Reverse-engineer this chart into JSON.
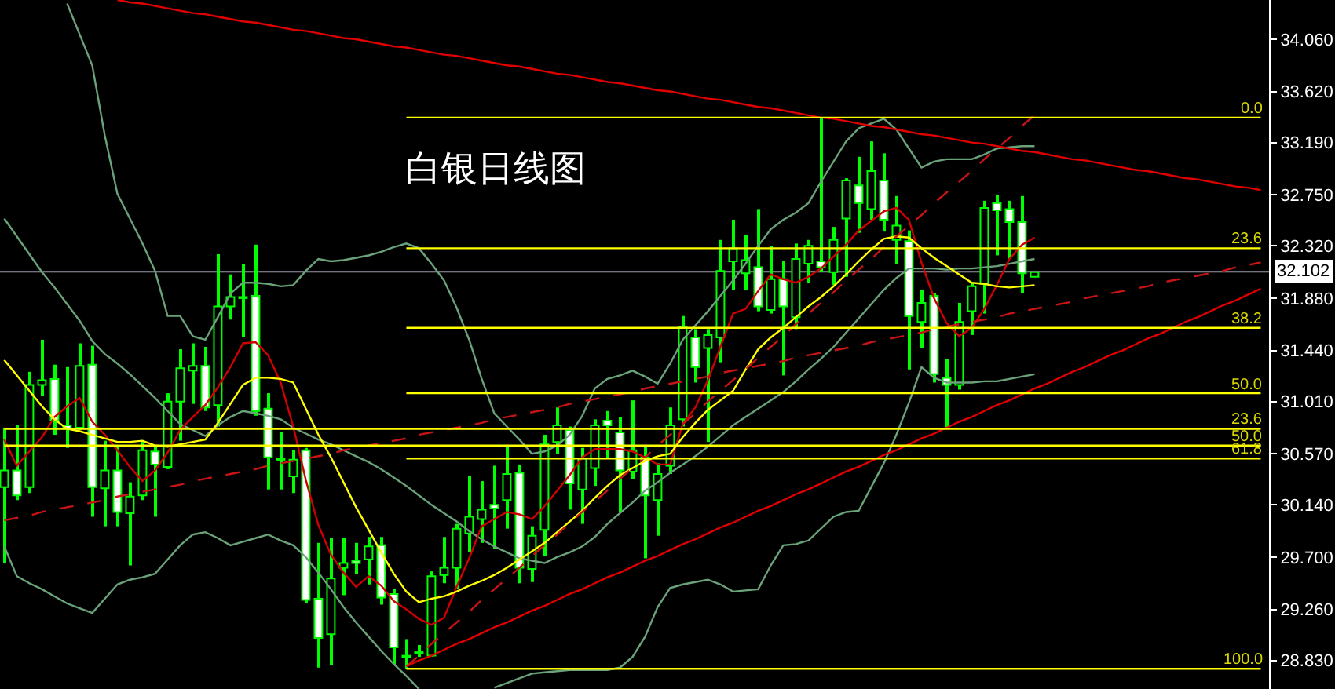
{
  "chart_data": {
    "type": "candlestick",
    "title": "白银日线图",
    "categories": [
      null,
      null,
      null,
      null,
      null,
      null,
      null,
      null,
      null,
      null,
      null,
      null,
      null,
      null,
      null,
      null,
      null,
      null,
      null,
      null,
      null,
      null,
      null,
      null,
      null,
      null,
      null,
      null,
      null,
      null,
      null,
      null,
      null,
      null,
      null,
      null,
      null,
      null,
      null,
      null,
      null,
      null,
      null,
      null,
      null,
      null,
      null,
      null,
      null,
      null,
      null,
      null,
      null,
      null,
      null,
      null,
      null,
      null,
      null,
      null,
      null,
      null,
      null,
      null,
      null,
      null,
      null,
      null,
      null,
      null,
      null,
      null,
      null,
      null,
      null,
      null,
      null,
      null,
      null,
      null,
      null,
      null,
      null,
      null,
      null,
      null,
      null,
      null,
      null,
      null,
      null,
      null,
      null,
      null,
      null,
      null,
      null,
      null,
      null,
      null,
      null
    ],
    "ohlc": [
      [
        30.29,
        30.79,
        29.65,
        30.43
      ],
      [
        30.43,
        30.81,
        30.18,
        30.22
      ],
      [
        30.29,
        31.26,
        30.24,
        31.15
      ],
      [
        31.15,
        31.53,
        31.06,
        31.19
      ],
      [
        31.2,
        31.32,
        30.73,
        30.85
      ],
      [
        30.81,
        31.3,
        30.62,
        30.78
      ],
      [
        30.79,
        31.5,
        30.77,
        31.31
      ],
      [
        31.32,
        31.48,
        30.04,
        30.29
      ],
      [
        30.28,
        30.68,
        29.96,
        30.43
      ],
      [
        30.43,
        30.64,
        29.96,
        30.08
      ],
      [
        30.07,
        30.33,
        29.63,
        30.21
      ],
      [
        30.22,
        30.68,
        30.18,
        30.6
      ],
      [
        30.59,
        30.64,
        30.04,
        30.48
      ],
      [
        30.46,
        31.08,
        30.44,
        31.01
      ],
      [
        31.01,
        31.45,
        30.68,
        31.29
      ],
      [
        31.27,
        31.5,
        30.99,
        31.31
      ],
      [
        31.31,
        31.47,
        30.93,
        30.96
      ],
      [
        30.98,
        32.25,
        30.8,
        31.81
      ],
      [
        31.81,
        32.08,
        31.7,
        31.89
      ],
      [
        31.89,
        32.17,
        31.55,
        31.88
      ],
      [
        31.9,
        32.33,
        30.89,
        30.93
      ],
      [
        30.95,
        31.08,
        30.27,
        30.54
      ],
      [
        30.53,
        30.75,
        30.27,
        30.52
      ],
      [
        30.38,
        30.6,
        30.24,
        30.52
      ],
      [
        30.6,
        30.62,
        29.31,
        29.34
      ],
      [
        29.35,
        29.82,
        28.77,
        29.02
      ],
      [
        29.05,
        29.86,
        28.79,
        29.52
      ],
      [
        29.61,
        29.86,
        29.38,
        29.65
      ],
      [
        29.67,
        29.82,
        29.56,
        29.65
      ],
      [
        29.68,
        29.87,
        29.47,
        29.79
      ],
      [
        29.8,
        29.87,
        29.3,
        29.36
      ],
      [
        29.39,
        29.43,
        28.79,
        28.94
      ],
      [
        28.87,
        29.01,
        28.76,
        28.86
      ],
      [
        28.89,
        28.96,
        28.86,
        28.9
      ],
      [
        28.87,
        29.58,
        28.86,
        29.54
      ],
      [
        29.55,
        29.87,
        29.48,
        29.61
      ],
      [
        29.61,
        29.98,
        29.43,
        29.94
      ],
      [
        29.9,
        30.38,
        29.74,
        30.04
      ],
      [
        30.02,
        30.34,
        29.82,
        30.1
      ],
      [
        30.14,
        30.47,
        29.77,
        30.11
      ],
      [
        30.18,
        30.64,
        29.94,
        30.4
      ],
      [
        30.41,
        30.48,
        29.48,
        29.61
      ],
      [
        29.6,
        29.96,
        29.49,
        29.88
      ],
      [
        29.93,
        30.73,
        29.71,
        30.65
      ],
      [
        30.67,
        30.96,
        30.57,
        30.81
      ],
      [
        30.77,
        30.8,
        30.1,
        30.32
      ],
      [
        30.27,
        30.62,
        29.98,
        30.53
      ],
      [
        30.45,
        30.86,
        30.3,
        30.81
      ],
      [
        30.85,
        30.93,
        30.53,
        30.81
      ],
      [
        30.75,
        30.88,
        30.08,
        30.43
      ],
      [
        30.42,
        31.02,
        30.36,
        30.6
      ],
      [
        30.54,
        30.64,
        29.69,
        30.22
      ],
      [
        30.18,
        30.49,
        29.88,
        30.4
      ],
      [
        30.47,
        30.96,
        30.4,
        30.81
      ],
      [
        30.86,
        31.73,
        30.8,
        31.64
      ],
      [
        31.55,
        31.62,
        31.17,
        31.3
      ],
      [
        31.46,
        31.62,
        30.67,
        31.57
      ],
      [
        31.55,
        32.37,
        31.34,
        32.11
      ],
      [
        32.19,
        32.54,
        31.95,
        32.3
      ],
      [
        32.09,
        32.41,
        31.95,
        32.2
      ],
      [
        32.14,
        32.63,
        31.77,
        31.81
      ],
      [
        31.78,
        32.32,
        31.75,
        32.04
      ],
      [
        32.04,
        32.19,
        31.23,
        31.81
      ],
      [
        31.72,
        32.34,
        31.62,
        32.21
      ],
      [
        32.17,
        32.37,
        32.01,
        32.32
      ],
      [
        32.19,
        33.4,
        32.1,
        32.14
      ],
      [
        32.1,
        32.48,
        31.99,
        32.37
      ],
      [
        32.55,
        32.89,
        32.06,
        32.87
      ],
      [
        32.83,
        33.07,
        32.43,
        32.68
      ],
      [
        32.63,
        33.2,
        32.54,
        32.95
      ],
      [
        32.87,
        33.1,
        32.44,
        32.54
      ],
      [
        32.37,
        32.74,
        32.17,
        32.49
      ],
      [
        32.36,
        32.45,
        31.28,
        31.73
      ],
      [
        31.68,
        31.95,
        31.46,
        31.84
      ],
      [
        31.9,
        31.92,
        31.17,
        31.24
      ],
      [
        31.21,
        31.37,
        30.79,
        31.15
      ],
      [
        31.15,
        31.84,
        31.11,
        31.68
      ],
      [
        31.77,
        32.01,
        31.57,
        31.98
      ],
      [
        32.0,
        32.7,
        31.75,
        32.64
      ],
      [
        32.68,
        32.75,
        32.24,
        32.62
      ],
      [
        32.63,
        32.7,
        32.21,
        32.52
      ],
      [
        32.52,
        32.74,
        31.92,
        32.09
      ],
      [
        32.06,
        32.1,
        32.06,
        32.1
      ],
      null,
      null,
      null,
      null,
      null,
      null,
      null,
      null,
      null,
      null,
      null,
      null,
      null,
      null,
      null,
      null,
      null,
      null
    ],
    "color": "#00ff00",
    "series": [
      {
        "type": "line",
        "color": "#6aa27a",
        "values": [
          null,
          null,
          null,
          null,
          null,
          34.36,
          34.1,
          33.84,
          33.25,
          32.76,
          32.55,
          32.34,
          32.11,
          31.73,
          31.73,
          31.56,
          31.53,
          31.72,
          31.92,
          32.01,
          32.01,
          32.0,
          31.98,
          31.99,
          32.11,
          32.21,
          32.19,
          32.2,
          32.22,
          32.24,
          32.27,
          32.31,
          32.34,
          32.3,
          32.17,
          32.03,
          31.8,
          31.53,
          31.2,
          30.91,
          30.8,
          30.69,
          30.57,
          30.59,
          30.64,
          30.73,
          30.89,
          31.12,
          31.2,
          31.23,
          31.27,
          31.22,
          31.16,
          31.33,
          31.53,
          31.65,
          31.77,
          31.9,
          32.03,
          32.17,
          32.32,
          32.46,
          32.54,
          32.6,
          32.68,
          32.86,
          33.03,
          33.2,
          33.31,
          33.35,
          33.39,
          33.3,
          33.14,
          32.98,
          33.03,
          33.05,
          33.05,
          33.05,
          33.09,
          33.14,
          33.15,
          33.16,
          33.16,
          null,
          null,
          null,
          null,
          null,
          null,
          null,
          null,
          null,
          null,
          null,
          null,
          null,
          null,
          null,
          null,
          null,
          null
        ]
      },
      {
        "type": "line",
        "color": "#6aa27a",
        "values": [
          32.55,
          32.4,
          32.25,
          32.1,
          31.97,
          31.83,
          31.69,
          31.52,
          31.41,
          31.33,
          31.24,
          31.14,
          31.04,
          30.93,
          30.82,
          30.77,
          30.72,
          30.81,
          30.88,
          30.93,
          30.91,
          30.89,
          30.86,
          30.79,
          30.74,
          30.69,
          30.65,
          30.6,
          30.55,
          30.5,
          30.44,
          30.37,
          30.3,
          30.22,
          30.14,
          30.07,
          30.0,
          29.92,
          29.85,
          29.79,
          29.74,
          29.69,
          29.67,
          29.65,
          29.7,
          29.74,
          29.79,
          29.87,
          29.98,
          30.07,
          30.16,
          30.26,
          30.33,
          30.41,
          30.48,
          30.55,
          30.63,
          30.72,
          30.81,
          30.88,
          30.95,
          31.02,
          31.09,
          31.18,
          31.28,
          31.37,
          31.47,
          31.59,
          31.71,
          31.83,
          31.95,
          32.05,
          32.13,
          32.13,
          32.13,
          32.12,
          32.13,
          32.13,
          32.14,
          32.15,
          32.17,
          32.19,
          32.21,
          null,
          null,
          null,
          null,
          null,
          null,
          null,
          null,
          null,
          null,
          null,
          null,
          null,
          null,
          null,
          null,
          null,
          null
        ]
      },
      {
        "type": "line",
        "color": "#6aa27a",
        "values": [
          29.79,
          29.54,
          29.48,
          29.43,
          29.37,
          29.31,
          29.27,
          29.23,
          29.35,
          29.47,
          29.51,
          29.53,
          29.56,
          29.68,
          29.8,
          29.89,
          29.91,
          29.86,
          29.8,
          29.83,
          29.86,
          29.89,
          29.84,
          29.8,
          29.7,
          29.57,
          29.43,
          29.28,
          29.15,
          29.03,
          28.91,
          28.8,
          28.7,
          28.59,
          null,
          null,
          null,
          null,
          null,
          28.6,
          28.64,
          28.68,
          28.72,
          28.73,
          28.74,
          28.75,
          28.75,
          28.75,
          28.75,
          28.77,
          28.86,
          29.03,
          29.28,
          29.44,
          29.47,
          29.49,
          29.51,
          29.47,
          29.41,
          29.42,
          29.43,
          29.63,
          29.8,
          29.81,
          29.84,
          29.94,
          30.04,
          30.08,
          30.09,
          30.29,
          30.49,
          30.73,
          31.0,
          31.3,
          31.21,
          31.17,
          31.17,
          31.17,
          31.18,
          31.18,
          31.2,
          31.22,
          31.24,
          null,
          null,
          null,
          null,
          null,
          null,
          null,
          null,
          null,
          null,
          null,
          null,
          null,
          null,
          null,
          null,
          null,
          null
        ]
      },
      {
        "type": "line",
        "color": "#d00000",
        "values": [
          30.69,
          30.47,
          30.59,
          30.71,
          30.88,
          30.97,
          31.04,
          30.84,
          30.73,
          30.6,
          30.46,
          30.34,
          30.43,
          30.58,
          30.77,
          30.88,
          30.98,
          31.13,
          31.3,
          31.5,
          31.51,
          31.4,
          31.17,
          30.8,
          30.35,
          29.97,
          29.72,
          29.57,
          29.45,
          29.54,
          29.46,
          29.33,
          29.26,
          29.18,
          29.13,
          29.19,
          29.45,
          29.69,
          29.96,
          30.02,
          30.08,
          30.06,
          30.02,
          30.13,
          30.26,
          30.39,
          30.54,
          30.61,
          30.61,
          30.61,
          30.59,
          30.54,
          30.48,
          30.48,
          30.82,
          30.96,
          31.19,
          31.47,
          31.75,
          31.79,
          31.94,
          32.08,
          32.04,
          32.01,
          32.06,
          32.13,
          32.23,
          32.33,
          32.45,
          32.53,
          32.61,
          32.64,
          32.54,
          32.18,
          31.88,
          31.67,
          31.56,
          31.63,
          31.79,
          31.99,
          32.21,
          32.33,
          32.39,
          null,
          null,
          null,
          null,
          null,
          null,
          null,
          null,
          null,
          null,
          null,
          null,
          null,
          null,
          null,
          null,
          null,
          null
        ]
      },
      {
        "type": "line",
        "color": "#ffff00",
        "values": [
          31.36,
          31.23,
          31.1,
          30.97,
          30.86,
          30.78,
          30.76,
          30.73,
          30.7,
          30.67,
          30.67,
          30.68,
          30.64,
          30.63,
          30.65,
          30.67,
          30.69,
          30.83,
          30.99,
          31.15,
          31.21,
          31.21,
          31.2,
          31.17,
          30.95,
          30.73,
          30.54,
          30.33,
          30.12,
          29.93,
          29.74,
          29.56,
          29.41,
          29.32,
          29.35,
          29.37,
          29.41,
          29.46,
          29.5,
          29.55,
          29.61,
          29.68,
          29.75,
          29.82,
          29.91,
          30.0,
          30.09,
          30.2,
          30.3,
          30.39,
          30.45,
          30.51,
          30.55,
          30.57,
          30.71,
          30.83,
          30.94,
          31.02,
          31.1,
          31.28,
          31.45,
          31.55,
          31.63,
          31.72,
          31.81,
          31.89,
          31.98,
          32.08,
          32.19,
          32.29,
          32.38,
          32.4,
          32.39,
          32.3,
          32.22,
          32.15,
          32.08,
          32.01,
          32.0,
          31.98,
          31.97,
          31.98,
          31.99,
          null,
          null,
          null,
          null,
          null,
          null,
          null,
          null,
          null,
          null,
          null,
          null,
          null,
          null,
          null,
          null,
          null,
          null
        ]
      },
      {
        "type": "line",
        "color": "#e00000",
        "values": [
          null,
          null,
          null,
          null,
          null,
          null,
          null,
          null,
          null,
          34.39,
          34.37,
          34.36,
          34.34,
          34.32,
          34.3,
          34.28,
          34.27,
          34.25,
          34.23,
          34.21,
          34.2,
          34.18,
          34.16,
          34.14,
          34.13,
          34.11,
          34.09,
          34.07,
          34.06,
          34.04,
          34.02,
          34.0,
          33.99,
          33.97,
          33.95,
          33.93,
          33.92,
          33.9,
          33.88,
          33.86,
          33.84,
          33.83,
          33.81,
          33.79,
          33.77,
          33.76,
          33.74,
          33.72,
          33.7,
          33.69,
          33.67,
          33.65,
          33.63,
          33.62,
          33.6,
          33.58,
          33.56,
          33.55,
          33.53,
          33.51,
          33.49,
          33.48,
          33.46,
          33.44,
          33.42,
          33.4,
          33.39,
          33.37,
          33.35,
          33.33,
          33.32,
          33.3,
          33.28,
          33.26,
          33.25,
          33.23,
          33.21,
          33.19,
          33.18,
          33.16,
          33.14,
          33.12,
          33.11,
          33.09,
          33.07,
          33.05,
          33.04,
          33.02,
          33.0,
          32.98,
          32.96,
          32.95,
          32.93,
          32.91,
          32.89,
          32.88,
          32.86,
          32.84,
          32.82,
          32.81,
          32.79
        ]
      },
      {
        "type": "line",
        "color": "#e00000",
        "values": [
          null,
          null,
          null,
          null,
          null,
          null,
          null,
          null,
          null,
          null,
          null,
          null,
          null,
          null,
          null,
          null,
          null,
          null,
          null,
          null,
          null,
          null,
          null,
          null,
          null,
          null,
          null,
          null,
          null,
          null,
          null,
          null,
          28.78,
          28.83,
          28.87,
          28.92,
          28.97,
          29.01,
          29.06,
          29.11,
          29.15,
          29.2,
          29.25,
          29.29,
          29.34,
          29.39,
          29.43,
          29.48,
          29.53,
          29.57,
          29.62,
          29.67,
          29.71,
          29.76,
          29.81,
          29.85,
          29.9,
          29.95,
          29.99,
          30.04,
          30.09,
          30.13,
          30.18,
          30.23,
          30.27,
          30.32,
          30.37,
          30.42,
          30.46,
          30.51,
          30.56,
          30.6,
          30.65,
          30.7,
          30.74,
          30.79,
          30.84,
          30.88,
          30.93,
          30.98,
          31.02,
          31.07,
          31.12,
          31.16,
          31.21,
          31.26,
          31.3,
          31.35,
          31.4,
          31.44,
          31.49,
          31.54,
          31.58,
          31.63,
          31.68,
          31.72,
          31.77,
          31.82,
          31.86,
          31.91,
          31.96
        ]
      },
      {
        "type": "line",
        "color": "#c81414",
        "line_style": "dashed",
        "values": [
          30.01,
          30.03,
          30.05,
          30.08,
          30.1,
          30.12,
          30.14,
          30.16,
          30.18,
          30.21,
          30.23,
          30.25,
          30.27,
          30.29,
          30.31,
          30.34,
          30.36,
          30.38,
          30.4,
          30.42,
          30.44,
          30.47,
          30.49,
          30.51,
          30.53,
          30.55,
          30.57,
          30.6,
          30.62,
          30.64,
          30.66,
          30.68,
          30.7,
          30.73,
          30.75,
          30.77,
          30.79,
          30.81,
          30.83,
          30.86,
          30.88,
          30.9,
          30.92,
          30.94,
          30.96,
          30.99,
          31.01,
          31.03,
          31.05,
          31.07,
          31.09,
          31.12,
          31.14,
          31.16,
          31.18,
          31.2,
          31.22,
          31.25,
          31.27,
          31.29,
          31.31,
          31.33,
          31.35,
          31.38,
          31.4,
          31.42,
          31.44,
          31.46,
          31.48,
          31.51,
          31.53,
          31.55,
          31.57,
          31.59,
          31.62,
          31.64,
          31.66,
          31.68,
          31.7,
          31.72,
          31.75,
          31.77,
          31.79,
          31.81,
          31.83,
          31.85,
          31.88,
          31.9,
          31.92,
          31.94,
          31.96,
          31.98,
          32.01,
          32.03,
          32.05,
          32.07,
          32.09,
          32.11,
          32.14,
          32.16,
          32.18
        ]
      },
      {
        "type": "line",
        "color": "#c81414",
        "line_style": "dashed",
        "values": [
          null,
          null,
          null,
          null,
          null,
          null,
          null,
          null,
          null,
          null,
          null,
          null,
          null,
          null,
          null,
          null,
          null,
          null,
          null,
          null,
          null,
          null,
          null,
          null,
          null,
          null,
          null,
          null,
          null,
          null,
          null,
          null,
          28.78,
          28.87,
          28.97,
          29.06,
          29.15,
          29.24,
          29.34,
          29.43,
          29.52,
          29.61,
          29.71,
          29.8,
          29.89,
          29.99,
          30.08,
          30.17,
          30.26,
          30.36,
          30.45,
          30.54,
          30.64,
          30.73,
          30.82,
          30.91,
          31.01,
          31.1,
          31.19,
          31.28,
          31.38,
          31.47,
          31.56,
          31.66,
          31.75,
          31.84,
          31.93,
          32.03,
          32.12,
          32.21,
          32.31,
          32.4,
          32.49,
          32.58,
          32.68,
          32.77,
          32.86,
          32.95,
          33.05,
          33.14,
          33.23,
          33.33,
          33.42,
          null,
          null,
          null,
          null,
          null,
          null,
          null,
          null,
          null,
          null,
          null,
          null,
          null,
          null,
          null,
          null,
          null,
          null
        ]
      },
      {
        "type": "line",
        "color": "#ffff00",
        "values": [
          null,
          null,
          null,
          null,
          null,
          null,
          null,
          null,
          null,
          null,
          null,
          null,
          null,
          null,
          null,
          null,
          null,
          null,
          null,
          null,
          null,
          null,
          null,
          null,
          null,
          null,
          null,
          null,
          null,
          null,
          null,
          null,
          33.4,
          33.4,
          33.4,
          33.4,
          33.4,
          33.4,
          33.4,
          33.4,
          33.4,
          33.4,
          33.4,
          33.4,
          33.4,
          33.4,
          33.4,
          33.4,
          33.4,
          33.4,
          33.4,
          33.4,
          33.4,
          33.4,
          33.4,
          33.4,
          33.4,
          33.4,
          33.4,
          33.4,
          33.4,
          33.4,
          33.4,
          33.4,
          33.4,
          33.4,
          33.4,
          33.4,
          33.4,
          33.4,
          33.4,
          33.4,
          33.4,
          33.4,
          33.4,
          33.4,
          33.4,
          33.4,
          33.4,
          33.4,
          33.4,
          33.4,
          33.4,
          33.4,
          33.4,
          33.4,
          33.4,
          33.4,
          33.4,
          33.4,
          33.4,
          33.4,
          33.4,
          33.4,
          33.4,
          33.4,
          33.4,
          33.4,
          33.4,
          33.4,
          33.4
        ]
      },
      {
        "type": "line",
        "color": "#ffff00",
        "values": [
          null,
          null,
          null,
          null,
          null,
          null,
          null,
          null,
          null,
          null,
          null,
          null,
          null,
          null,
          null,
          null,
          null,
          null,
          null,
          null,
          null,
          null,
          null,
          null,
          null,
          null,
          null,
          null,
          null,
          null,
          null,
          null,
          32.3,
          32.3,
          32.3,
          32.3,
          32.3,
          32.3,
          32.3,
          32.3,
          32.3,
          32.3,
          32.3,
          32.3,
          32.3,
          32.3,
          32.3,
          32.3,
          32.3,
          32.3,
          32.3,
          32.3,
          32.3,
          32.3,
          32.3,
          32.3,
          32.3,
          32.3,
          32.3,
          32.3,
          32.3,
          32.3,
          32.3,
          32.3,
          32.3,
          32.3,
          32.3,
          32.3,
          32.3,
          32.3,
          32.3,
          32.3,
          32.3,
          32.3,
          32.3,
          32.3,
          32.3,
          32.3,
          32.3,
          32.3,
          32.3,
          32.3,
          32.3,
          32.3,
          32.3,
          32.3,
          32.3,
          32.3,
          32.3,
          32.3,
          32.3,
          32.3,
          32.3,
          32.3,
          32.3,
          32.3,
          32.3,
          32.3,
          32.3,
          32.3,
          32.3
        ]
      },
      {
        "type": "line",
        "color": "#ffff00",
        "values": [
          null,
          null,
          null,
          null,
          null,
          null,
          null,
          null,
          null,
          null,
          null,
          null,
          null,
          null,
          null,
          null,
          null,
          null,
          null,
          null,
          null,
          null,
          null,
          null,
          null,
          null,
          null,
          null,
          null,
          null,
          null,
          null,
          31.63,
          31.63,
          31.63,
          31.63,
          31.63,
          31.63,
          31.63,
          31.63,
          31.63,
          31.63,
          31.63,
          31.63,
          31.63,
          31.63,
          31.63,
          31.63,
          31.63,
          31.63,
          31.63,
          31.63,
          31.63,
          31.63,
          31.63,
          31.63,
          31.63,
          31.63,
          31.63,
          31.63,
          31.63,
          31.63,
          31.63,
          31.63,
          31.63,
          31.63,
          31.63,
          31.63,
          31.63,
          31.63,
          31.63,
          31.63,
          31.63,
          31.63,
          31.63,
          31.63,
          31.63,
          31.63,
          31.63,
          31.63,
          31.63,
          31.63,
          31.63,
          31.63,
          31.63,
          31.63,
          31.63,
          31.63,
          31.63,
          31.63,
          31.63,
          31.63,
          31.63,
          31.63,
          31.63,
          31.63,
          31.63,
          31.63,
          31.63,
          31.63,
          31.63
        ]
      },
      {
        "type": "line",
        "color": "#ffff00",
        "values": [
          null,
          null,
          null,
          null,
          null,
          null,
          null,
          null,
          null,
          null,
          null,
          null,
          null,
          null,
          null,
          null,
          null,
          null,
          null,
          null,
          null,
          null,
          null,
          null,
          null,
          null,
          null,
          null,
          null,
          null,
          null,
          null,
          31.08,
          31.08,
          31.08,
          31.08,
          31.08,
          31.08,
          31.08,
          31.08,
          31.08,
          31.08,
          31.08,
          31.08,
          31.08,
          31.08,
          31.08,
          31.08,
          31.08,
          31.08,
          31.08,
          31.08,
          31.08,
          31.08,
          31.08,
          31.08,
          31.08,
          31.08,
          31.08,
          31.08,
          31.08,
          31.08,
          31.08,
          31.08,
          31.08,
          31.08,
          31.08,
          31.08,
          31.08,
          31.08,
          31.08,
          31.08,
          31.08,
          31.08,
          31.08,
          31.08,
          31.08,
          31.08,
          31.08,
          31.08,
          31.08,
          31.08,
          31.08,
          31.08,
          31.08,
          31.08,
          31.08,
          31.08,
          31.08,
          31.08,
          31.08,
          31.08,
          31.08,
          31.08,
          31.08,
          31.08,
          31.08,
          31.08,
          31.08,
          31.08,
          31.08
        ]
      },
      {
        "type": "line",
        "color": "#ffff00",
        "values": [
          null,
          null,
          null,
          null,
          null,
          null,
          null,
          null,
          null,
          null,
          null,
          null,
          null,
          null,
          null,
          null,
          null,
          null,
          null,
          null,
          null,
          null,
          null,
          null,
          null,
          null,
          null,
          null,
          null,
          null,
          null,
          null,
          30.53,
          30.53,
          30.53,
          30.53,
          30.53,
          30.53,
          30.53,
          30.53,
          30.53,
          30.53,
          30.53,
          30.53,
          30.53,
          30.53,
          30.53,
          30.53,
          30.53,
          30.53,
          30.53,
          30.53,
          30.53,
          30.53,
          30.53,
          30.53,
          30.53,
          30.53,
          30.53,
          30.53,
          30.53,
          30.53,
          30.53,
          30.53,
          30.53,
          30.53,
          30.53,
          30.53,
          30.53,
          30.53,
          30.53,
          30.53,
          30.53,
          30.53,
          30.53,
          30.53,
          30.53,
          30.53,
          30.53,
          30.53,
          30.53,
          30.53,
          30.53,
          30.53,
          30.53,
          30.53,
          30.53,
          30.53,
          30.53,
          30.53,
          30.53,
          30.53,
          30.53,
          30.53,
          30.53,
          30.53,
          30.53,
          30.53,
          30.53,
          30.53,
          30.53
        ]
      },
      {
        "type": "line",
        "color": "#ffff00",
        "values": [
          null,
          null,
          null,
          null,
          null,
          null,
          null,
          null,
          null,
          null,
          null,
          null,
          null,
          null,
          null,
          null,
          null,
          null,
          null,
          null,
          null,
          null,
          null,
          null,
          null,
          null,
          null,
          null,
          null,
          null,
          null,
          null,
          28.76,
          28.76,
          28.76,
          28.76,
          28.76,
          28.76,
          28.76,
          28.76,
          28.76,
          28.76,
          28.76,
          28.76,
          28.76,
          28.76,
          28.76,
          28.76,
          28.76,
          28.76,
          28.76,
          28.76,
          28.76,
          28.76,
          28.76,
          28.76,
          28.76,
          28.76,
          28.76,
          28.76,
          28.76,
          28.76,
          28.76,
          28.76,
          28.76,
          28.76,
          28.76,
          28.76,
          28.76,
          28.76,
          28.76,
          28.76,
          28.76,
          28.76,
          28.76,
          28.76,
          28.76,
          28.76,
          28.76,
          28.76,
          28.76,
          28.76,
          28.76,
          28.76,
          28.76,
          28.76,
          28.76,
          28.76,
          28.76,
          28.76,
          28.76,
          28.76,
          28.76,
          28.76,
          28.76,
          28.76,
          28.76,
          28.76,
          28.76,
          28.76,
          28.76
        ]
      },
      {
        "type": "line",
        "color": "#ffff00",
        "values": [
          30.78,
          30.78,
          30.78,
          30.78,
          30.78,
          30.78,
          30.78,
          30.78,
          30.78,
          30.78,
          30.78,
          30.78,
          30.78,
          30.78,
          30.78,
          30.78,
          30.78,
          30.78,
          30.78,
          30.78,
          30.78,
          30.78,
          30.78,
          30.78,
          30.78,
          30.78,
          30.78,
          30.78,
          30.78,
          30.78,
          30.78,
          30.78,
          30.78,
          30.78,
          30.78,
          30.78,
          30.78,
          30.78,
          30.78,
          30.78,
          30.78,
          30.78,
          30.78,
          30.78,
          30.78,
          30.78,
          30.78,
          30.78,
          30.78,
          30.78,
          30.78,
          30.78,
          30.78,
          30.78,
          30.78,
          30.78,
          30.78,
          30.78,
          30.78,
          30.78,
          30.78,
          30.78,
          30.78,
          30.78,
          30.78,
          30.78,
          30.78,
          30.78,
          30.78,
          30.78,
          30.78,
          30.78,
          30.78,
          30.78,
          30.78,
          30.78,
          30.78,
          30.78,
          30.78,
          30.78,
          30.78,
          30.78,
          30.78,
          30.78,
          30.78,
          30.78,
          30.78,
          30.78,
          30.78,
          30.78,
          30.78,
          30.78,
          30.78,
          30.78,
          30.78,
          30.78,
          30.78,
          30.78,
          30.78,
          30.78,
          30.78
        ]
      },
      {
        "type": "line",
        "color": "#ffff00",
        "values": [
          30.64,
          30.64,
          30.64,
          30.64,
          30.64,
          30.64,
          30.64,
          30.64,
          30.64,
          30.64,
          30.64,
          30.64,
          30.64,
          30.64,
          30.64,
          30.64,
          30.64,
          30.64,
          30.64,
          30.64,
          30.64,
          30.64,
          30.64,
          30.64,
          30.64,
          30.64,
          30.64,
          30.64,
          30.64,
          30.64,
          30.64,
          30.64,
          30.64,
          30.64,
          30.64,
          30.64,
          30.64,
          30.64,
          30.64,
          30.64,
          30.64,
          30.64,
          30.64,
          30.64,
          30.64,
          30.64,
          30.64,
          30.64,
          30.64,
          30.64,
          30.64,
          30.64,
          30.64,
          30.64,
          30.64,
          30.64,
          30.64,
          30.64,
          30.64,
          30.64,
          30.64,
          30.64,
          30.64,
          30.64,
          30.64,
          30.64,
          30.64,
          30.64,
          30.64,
          30.64,
          30.64,
          30.64,
          30.64,
          30.64,
          30.64,
          30.64,
          30.64,
          30.64,
          30.64,
          30.64,
          30.64,
          30.64,
          30.64,
          30.64,
          30.64,
          30.64,
          30.64,
          30.64,
          30.64,
          30.64,
          30.64,
          30.64,
          30.64,
          30.64,
          30.64,
          30.64,
          30.64,
          30.64,
          30.64,
          30.64,
          30.64
        ]
      }
    ],
    "ylim": [
      28.59,
      34.39
    ],
    "yticks": [
      {
        "value": 34.06,
        "label": "34.060"
      },
      {
        "value": 33.62,
        "label": "33.620"
      },
      {
        "value": 33.19,
        "label": "33.190"
      },
      {
        "value": 32.75,
        "label": "32.750"
      },
      {
        "value": 32.32,
        "label": "32.320"
      },
      {
        "value": 31.88,
        "label": "31.880"
      },
      {
        "value": 31.44,
        "label": "31.440"
      },
      {
        "value": 31.01,
        "label": "31.010"
      },
      {
        "value": 30.57,
        "label": "30.570"
      },
      {
        "value": 30.14,
        "label": "30.140"
      },
      {
        "value": 29.7,
        "label": "29.700"
      },
      {
        "value": 29.26,
        "label": "29.260"
      },
      {
        "value": 28.83,
        "label": "28.830"
      }
    ],
    "ref_lines": [
      {
        "axis": "y",
        "value": 32.102,
        "label": "32.102",
        "color": "#9a9aaa"
      }
    ],
    "annotations": [
      {
        "text": "0.0",
        "y": 33.4
      },
      {
        "text": "23.6",
        "y": 32.3
      },
      {
        "text": "38.2",
        "y": 31.63
      },
      {
        "text": "50.0",
        "y": 31.08
      },
      {
        "text": "23.6",
        "y": 30.78
      },
      {
        "text": "50.0",
        "y": 30.64
      },
      {
        "text": "61.8",
        "y": 30.53
      },
      {
        "text": "100.0",
        "y": 28.76
      }
    ],
    "tick_labels": "y"
  }
}
